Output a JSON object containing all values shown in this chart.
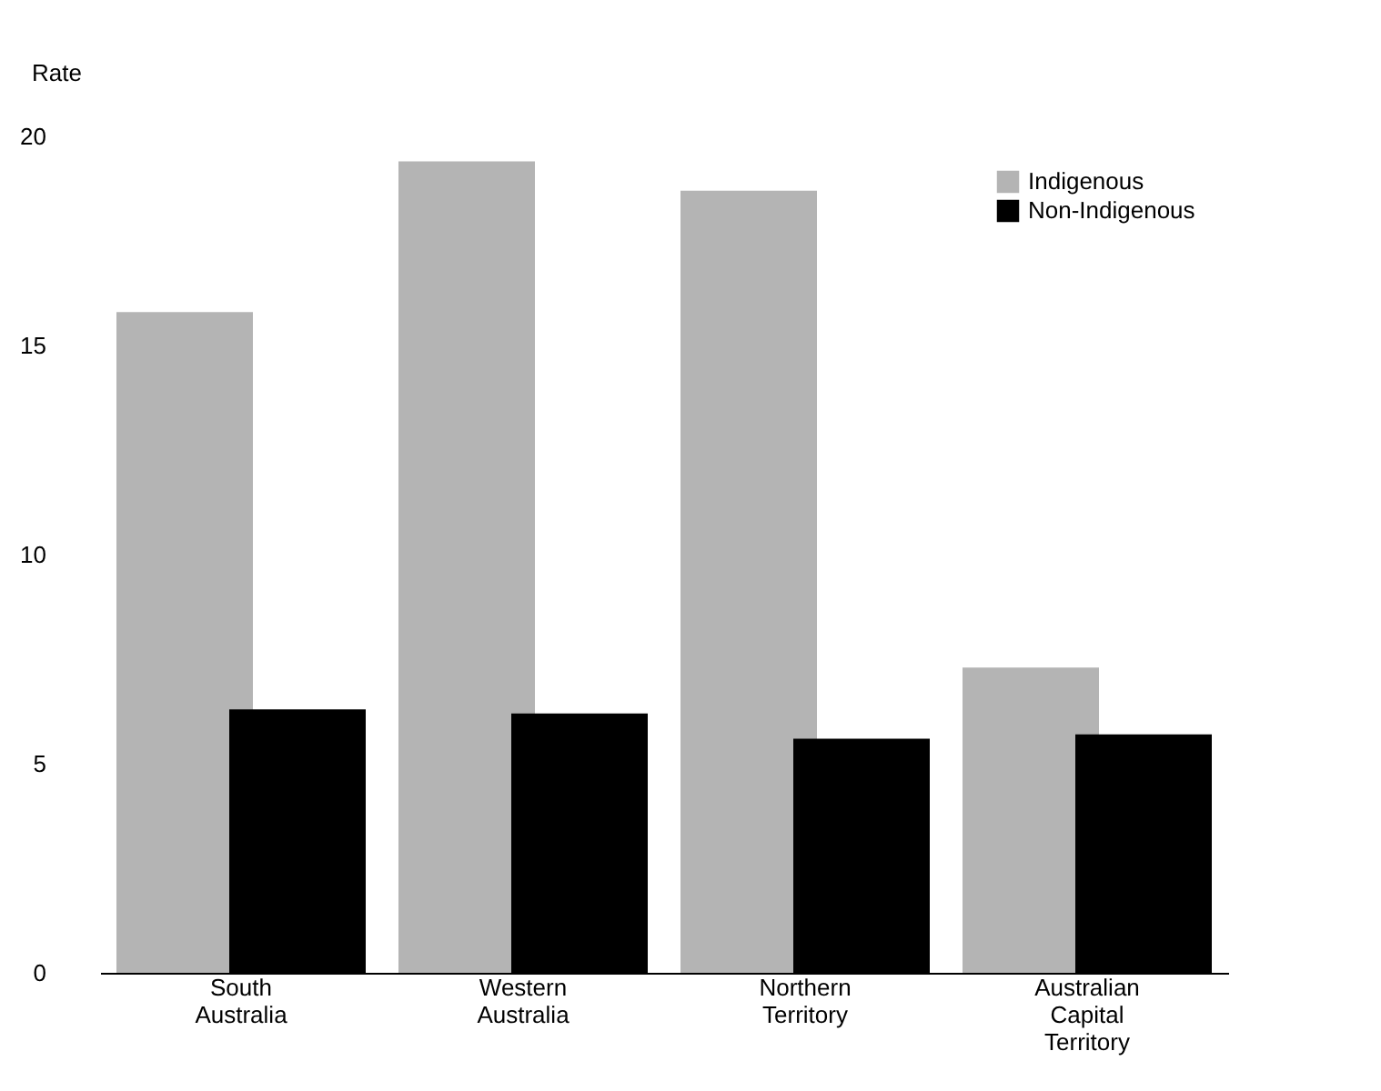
{
  "chart_data": {
    "type": "bar",
    "ylabel": "Rate",
    "categories": [
      "South Australia",
      "Western Australia",
      "Northern Territory",
      "Australian Capital Territory"
    ],
    "series": [
      {
        "name": "Indigenous",
        "color": "#b4b4b4",
        "values": [
          15.8,
          19.4,
          18.7,
          7.3
        ]
      },
      {
        "name": "Non-Indigenous",
        "color": "#000000",
        "values": [
          6.3,
          6.2,
          5.6,
          5.7
        ]
      }
    ],
    "ylim": [
      0,
      20
    ],
    "yticks": [
      0,
      5,
      10,
      15,
      20
    ],
    "grid": false,
    "legend": "top right"
  }
}
